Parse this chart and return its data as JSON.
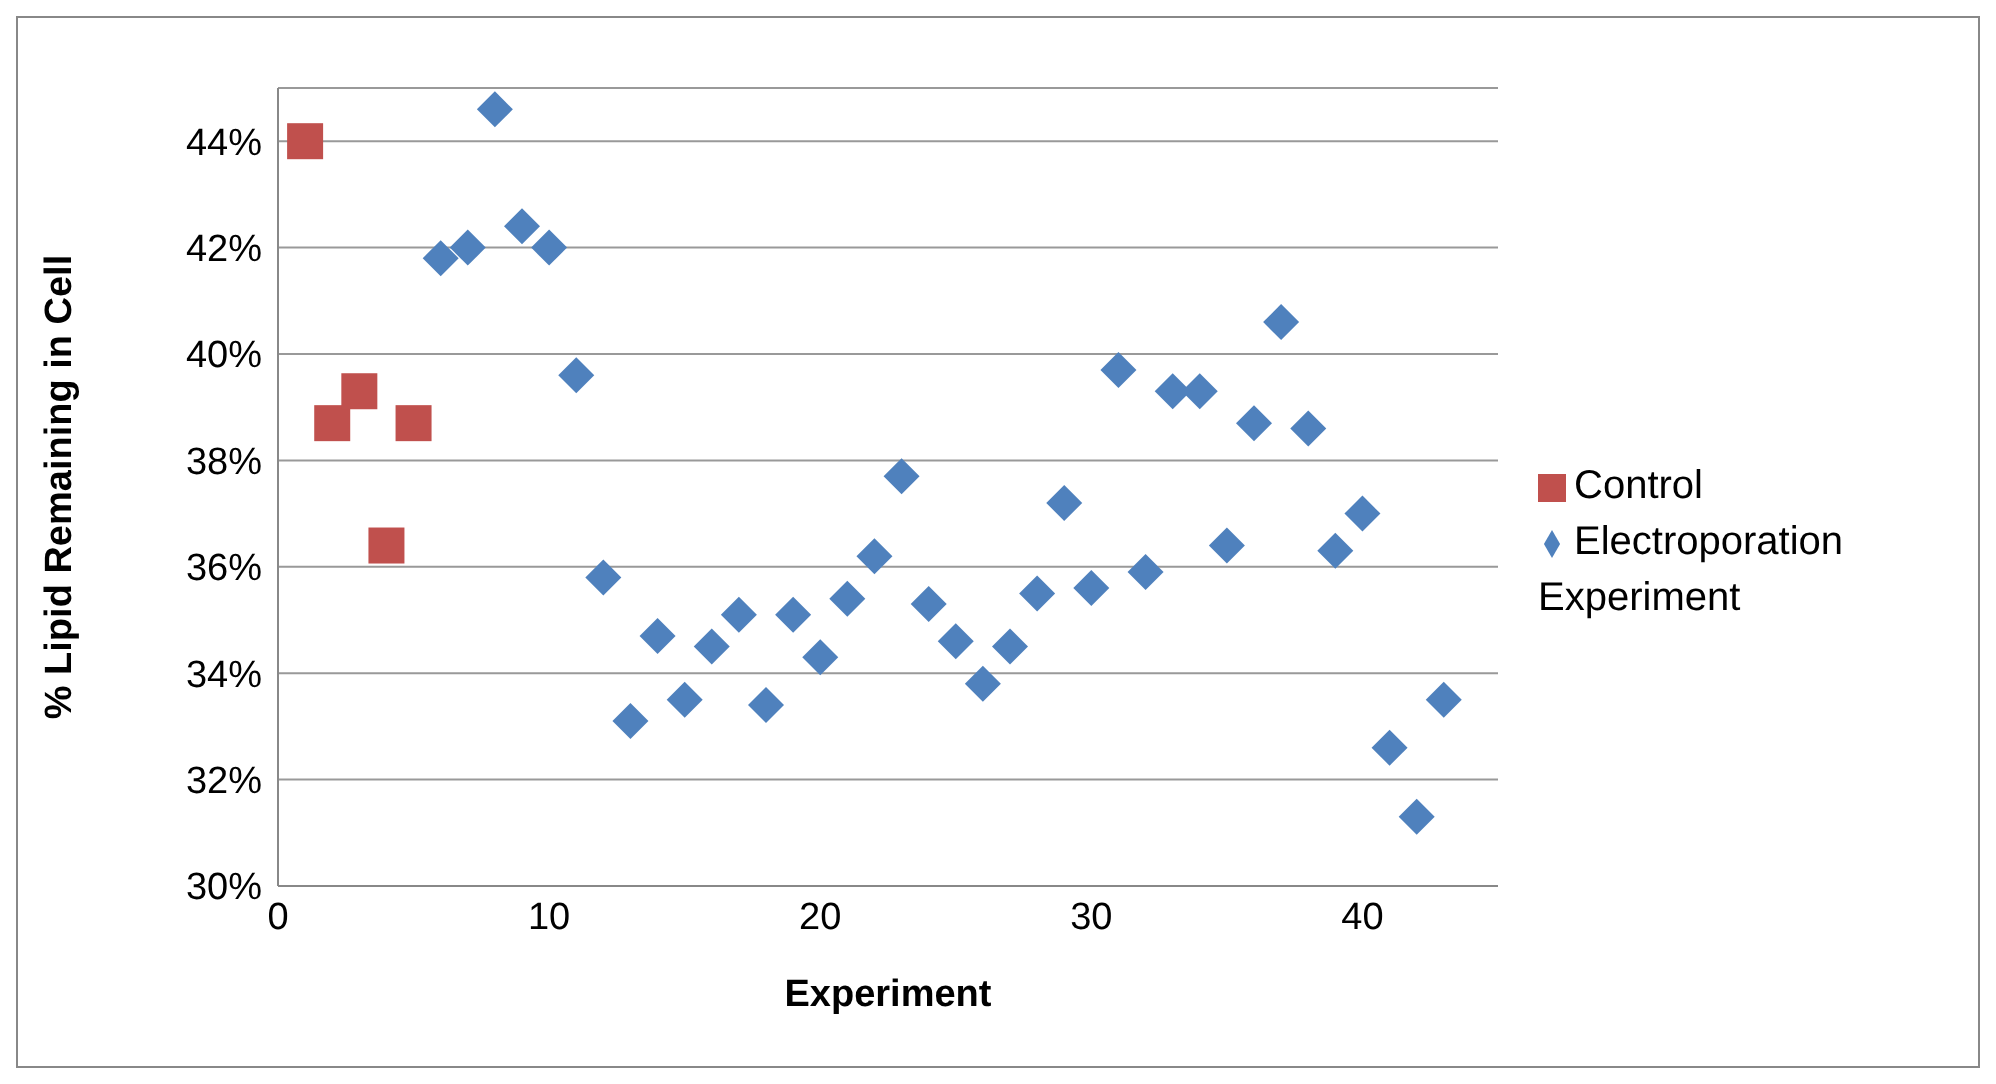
{
  "chart_data": {
    "type": "scatter",
    "xlabel": "Experiment",
    "ylabel": "% Lipid Remaining in Cell",
    "xlim": [
      0,
      45
    ],
    "xticks": [
      0,
      10,
      20,
      30,
      40
    ],
    "ylim": [
      30,
      45
    ],
    "yticks": [
      {
        "value": 30,
        "label": "30%"
      },
      {
        "value": 32,
        "label": "32%"
      },
      {
        "value": 34,
        "label": "34%"
      },
      {
        "value": 36,
        "label": "36%"
      },
      {
        "value": 38,
        "label": "38%"
      },
      {
        "value": 40,
        "label": "40%"
      },
      {
        "value": 42,
        "label": "42%"
      },
      {
        "value": 44,
        "label": "44%"
      }
    ],
    "grid": "y",
    "legend": "right",
    "series": [
      {
        "name": "Control",
        "color": "#c0504d",
        "marker": "square",
        "x": [
          1,
          2,
          3,
          4,
          5
        ],
        "values": [
          44.0,
          38.7,
          39.3,
          36.4,
          38.7
        ]
      },
      {
        "name": "Electroporation Experiment",
        "color": "#4f81bd",
        "marker": "diamond",
        "x": [
          6,
          7,
          8,
          9,
          10,
          11,
          12,
          13,
          14,
          15,
          16,
          17,
          18,
          19,
          20,
          21,
          22,
          23,
          24,
          25,
          26,
          27,
          28,
          29,
          30,
          31,
          32,
          33,
          34,
          35,
          36,
          37,
          38,
          39,
          40,
          41,
          42,
          43
        ],
        "values": [
          41.8,
          42.0,
          44.6,
          42.4,
          42.0,
          39.6,
          35.8,
          33.1,
          34.7,
          33.5,
          34.5,
          35.1,
          33.4,
          35.1,
          34.3,
          35.4,
          36.2,
          37.7,
          35.3,
          34.6,
          33.8,
          34.5,
          35.5,
          37.2,
          35.6,
          39.7,
          35.9,
          39.3,
          39.3,
          36.4,
          38.7,
          40.6,
          38.6,
          36.3,
          37.0,
          32.6,
          31.3,
          33.5
        ]
      }
    ]
  }
}
